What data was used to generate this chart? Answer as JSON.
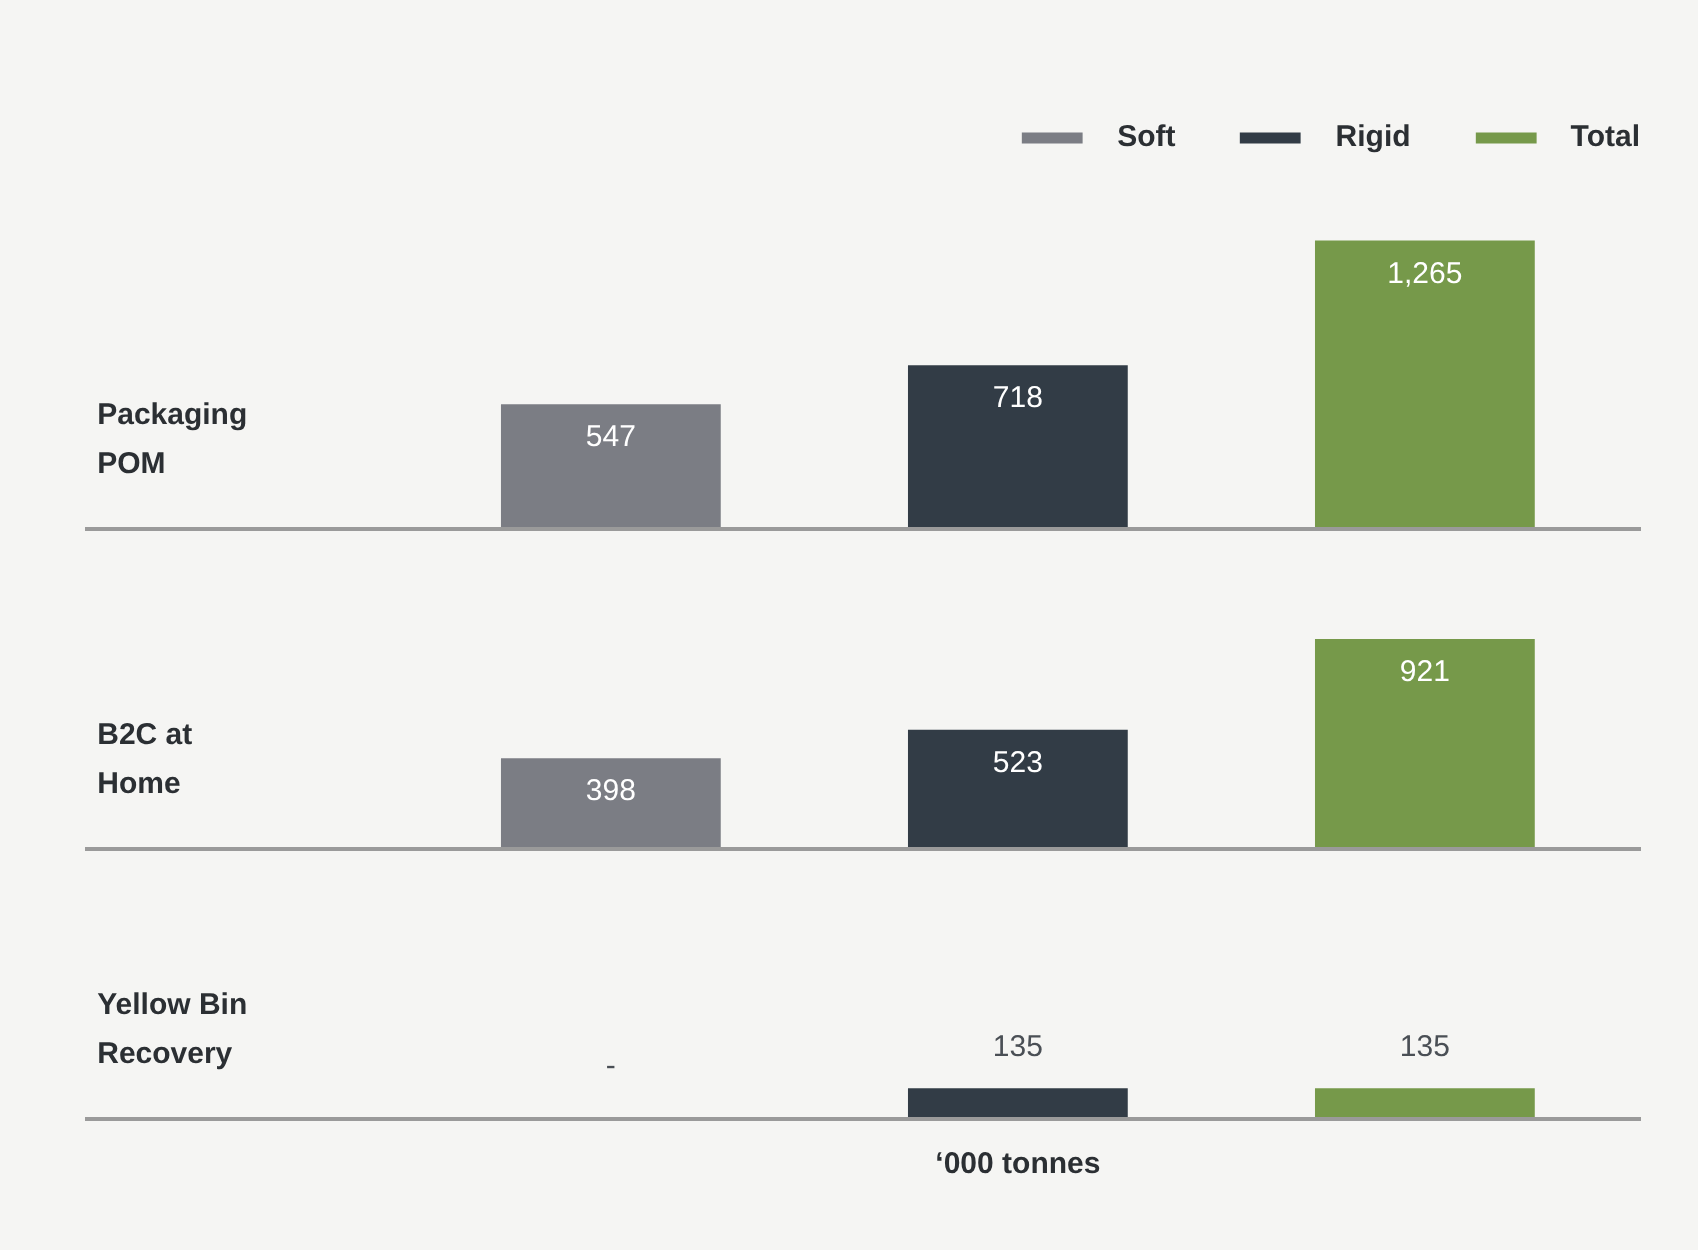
{
  "chart_data": [
    {
      "type": "bar",
      "ylabel": "Packaging POM",
      "categories": [
        null,
        null,
        null
      ],
      "stacked": true,
      "legend": "top right",
      "series": [
        {
          "name": "Soft",
          "color": "#7b7d84",
          "values": [
            547,
            null,
            null
          ],
          "value_labels": [
            "547",
            null,
            null
          ]
        },
        {
          "name": "Rigid",
          "color": "#323c46",
          "values": [
            null,
            718,
            null
          ],
          "value_labels": [
            null,
            "718",
            null
          ]
        },
        {
          "name": "Total",
          "color": "#76994a",
          "values": [
            null,
            null,
            1265
          ],
          "value_labels": [
            null,
            null,
            "1,265"
          ]
        }
      ]
    },
    {
      "type": "bar",
      "ylabel": "B2C at Home",
      "categories": [
        null,
        null,
        null
      ],
      "stacked": true,
      "series": [
        {
          "color": "#7b7d84",
          "values": [
            398,
            null,
            null
          ],
          "value_labels": [
            "398",
            null,
            null
          ]
        },
        {
          "color": "#323c46",
          "values": [
            null,
            523,
            null
          ],
          "value_labels": [
            null,
            "523",
            null
          ]
        },
        {
          "color": "#76994a",
          "values": [
            null,
            null,
            921
          ],
          "value_labels": [
            null,
            null,
            "921"
          ]
        }
      ]
    },
    {
      "type": "bar",
      "ylabel": "Yellow Bin Recovery",
      "xlabel": "‘000 tonnes",
      "categories": [
        null,
        null,
        null
      ],
      "stacked": true,
      "series": [
        {
          "color": "#7b7d84",
          "values": [
            null,
            null,
            null
          ],
          "value_labels": [
            "-",
            null,
            null
          ]
        },
        {
          "color": "#323c46",
          "values": [
            null,
            135,
            null
          ],
          "value_labels": [
            null,
            "135",
            null
          ]
        },
        {
          "color": "#76994a",
          "values": [
            null,
            null,
            135
          ],
          "value_labels": [
            null,
            null,
            "135"
          ]
        }
      ]
    }
  ]
}
